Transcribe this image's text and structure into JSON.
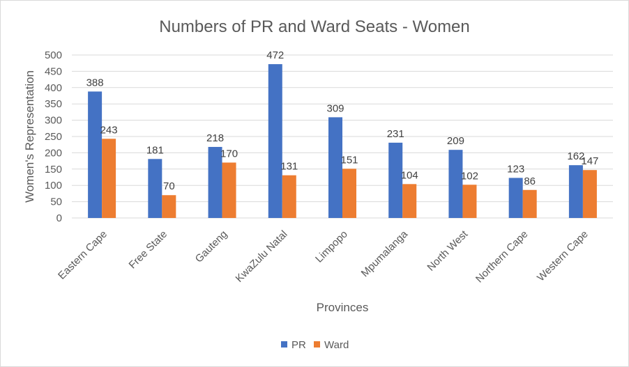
{
  "chart_data": {
    "type": "bar",
    "title": "Numbers of PR and Ward Seats - Women",
    "xlabel": "Provinces",
    "ylabel": "Women's Representation",
    "categories": [
      "Eastern Cape",
      "Free State",
      "Gauteng",
      "KwaZulu Natal",
      "Limpopo",
      "Mpumalanga",
      "North West",
      "Northern Cape",
      "Western Cape"
    ],
    "series": [
      {
        "name": "PR",
        "color": "#4472c4",
        "values": [
          388,
          181,
          218,
          472,
          309,
          231,
          209,
          123,
          162
        ]
      },
      {
        "name": "Ward",
        "color": "#ed7d31",
        "values": [
          243,
          70,
          170,
          131,
          151,
          104,
          102,
          86,
          147
        ]
      }
    ],
    "ylim": [
      0,
      500
    ],
    "yticks": [
      0,
      50,
      100,
      150,
      200,
      250,
      300,
      350,
      400,
      450,
      500
    ],
    "grid": true,
    "legend": "bottom",
    "data_labels": true
  }
}
